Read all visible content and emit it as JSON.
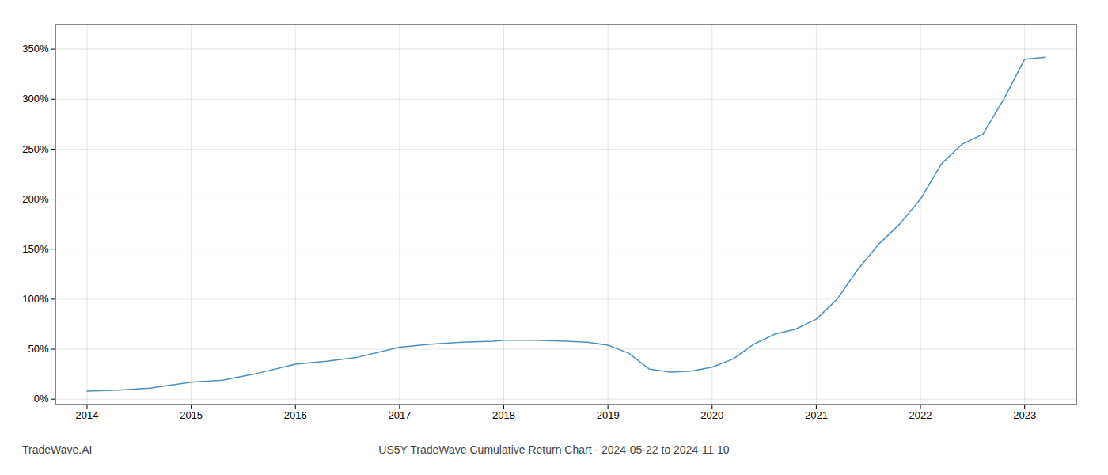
{
  "chart_data": {
    "type": "line",
    "title": "US5Y TradeWave Cumulative Return Chart - 2024-05-22 to 2024-11-10",
    "annotations": [
      "TradeWave.AI"
    ],
    "x": [
      2014.0,
      2014.3,
      2014.6,
      2015.0,
      2015.3,
      2015.6,
      2016.0,
      2016.3,
      2016.6,
      2017.0,
      2017.3,
      2017.6,
      2017.9,
      2018.0,
      2018.3,
      2018.6,
      2018.8,
      2019.0,
      2019.2,
      2019.4,
      2019.6,
      2019.8,
      2020.0,
      2020.2,
      2020.4,
      2020.6,
      2020.8,
      2021.0,
      2021.2,
      2021.4,
      2021.6,
      2021.8,
      2022.0,
      2022.2,
      2022.4,
      2022.6,
      2022.8,
      2023.0,
      2023.2
    ],
    "values": [
      8,
      9,
      11,
      17,
      19,
      25,
      35,
      38,
      42,
      52,
      55,
      57,
      58,
      59,
      59,
      58,
      57,
      54,
      46,
      30,
      27,
      28,
      32,
      40,
      55,
      65,
      70,
      80,
      100,
      130,
      155,
      175,
      200,
      235,
      255,
      265,
      300,
      340,
      342
    ],
    "color": "#4a90c4",
    "xlim": [
      2013.7,
      2023.5
    ],
    "xticks": [
      2014,
      2015,
      2016,
      2017,
      2018,
      2019,
      2020,
      2021,
      2022,
      2023
    ],
    "ylim": [
      -5,
      375
    ],
    "yticks": [
      {
        "value": 0,
        "label": "0%"
      },
      {
        "value": 50,
        "label": "50%"
      },
      {
        "value": 100,
        "label": "100%"
      },
      {
        "value": 150,
        "label": "150%"
      },
      {
        "value": 200,
        "label": "200%"
      },
      {
        "value": 250,
        "label": "250%"
      },
      {
        "value": 300,
        "label": "300%"
      },
      {
        "value": 350,
        "label": "350%"
      }
    ],
    "grid": true
  }
}
